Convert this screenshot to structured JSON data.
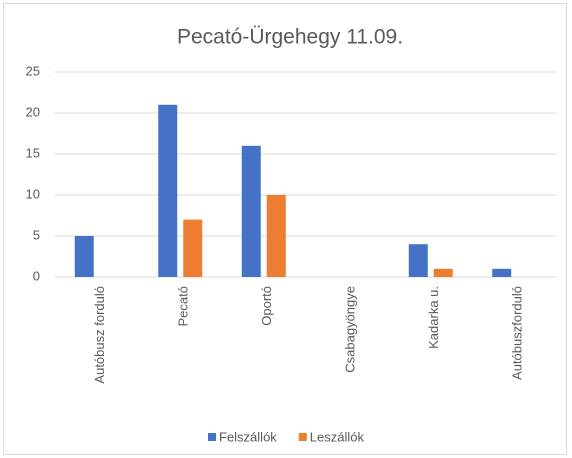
{
  "chart_data": {
    "type": "bar",
    "title": "Pecató-Ürgehegy 11.09.",
    "categories": [
      "Autóbusz forduló",
      "Pecató",
      "Oportó",
      "Csabagyöngye",
      "Kadarka u.",
      "Autóbuszforduló"
    ],
    "series": [
      {
        "name": "Felszállók",
        "color": "#4472c4",
        "values": [
          5,
          21,
          16,
          0,
          4,
          1
        ]
      },
      {
        "name": "Leszállók",
        "color": "#ed7d31",
        "values": [
          0,
          7,
          10,
          0,
          1,
          0
        ]
      }
    ],
    "ylim": [
      0,
      25
    ],
    "yticks": [
      0,
      5,
      10,
      15,
      20,
      25
    ],
    "grid": true,
    "legend": "bottom"
  }
}
